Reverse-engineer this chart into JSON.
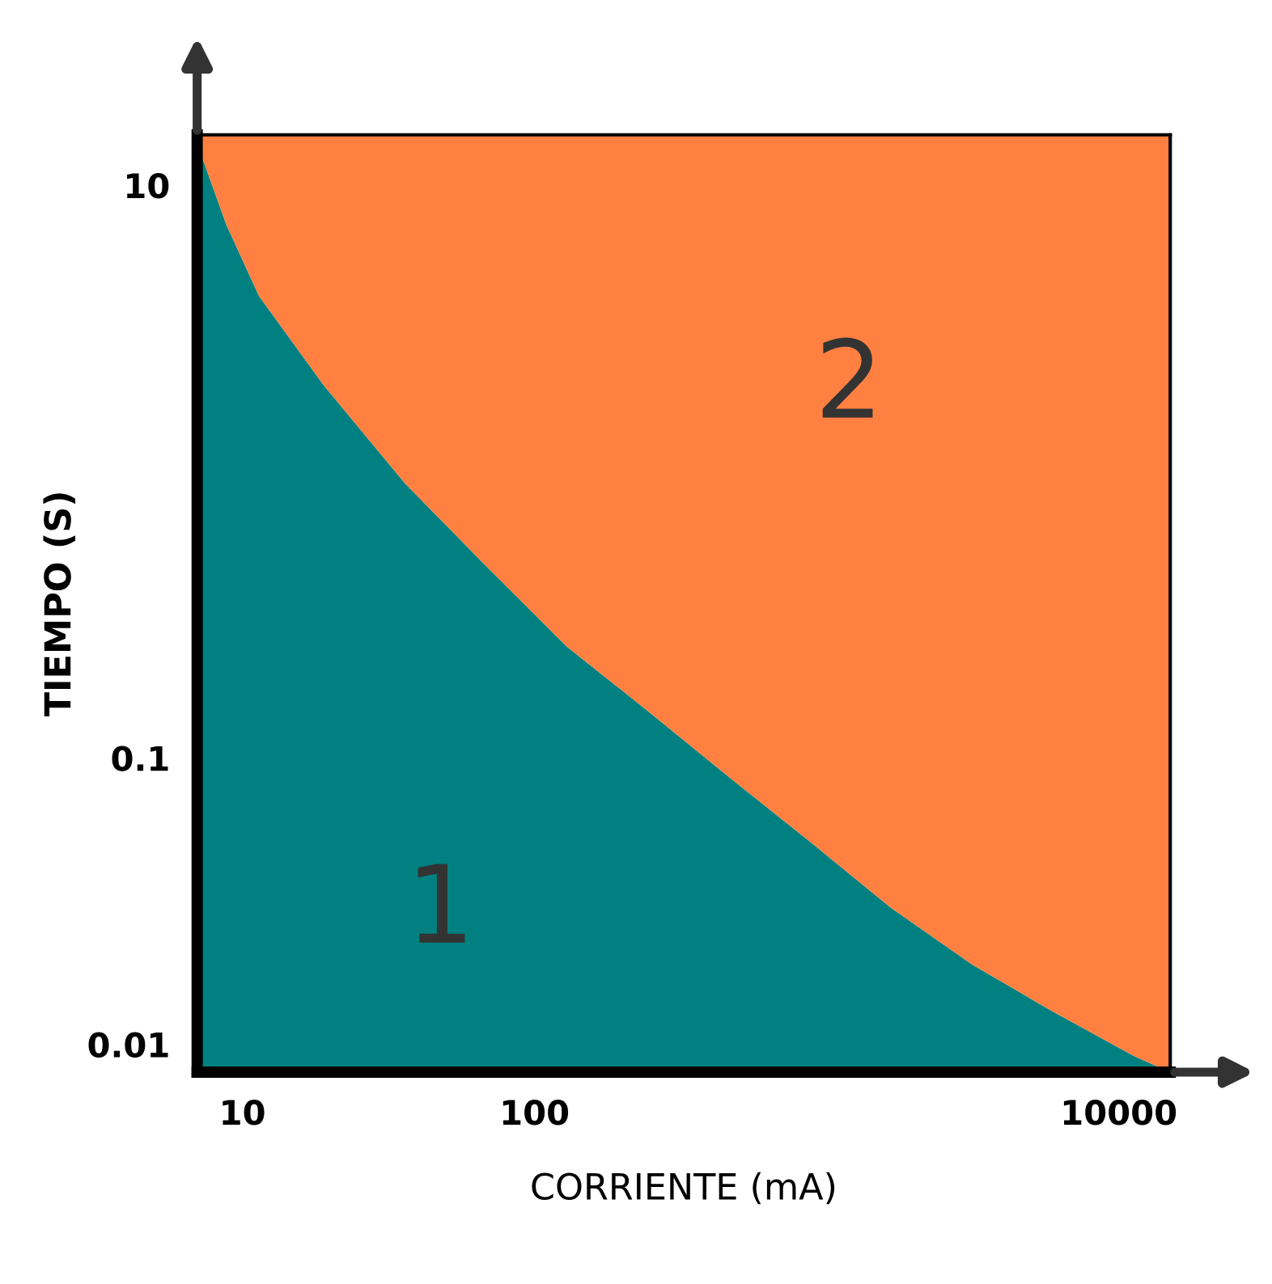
{
  "chart_data": {
    "type": "area",
    "stacked": true,
    "log": "xy",
    "xlabel": "CORRIENTE (mA)",
    "ylabel": "TIEMPO (S)",
    "x": [
      7,
      8.8,
      11.4,
      19,
      36,
      68,
      129,
      244,
      462,
      877,
      1660,
      3150,
      5960,
      11300,
      15000
    ],
    "series": [
      {
        "color": "#008080",
        "values": [
          14,
          7.3,
          4.1,
          2.0,
          0.91,
          0.47,
          0.245,
          0.146,
          0.086,
          0.051,
          0.03,
          0.019,
          0.013,
          0.0091,
          0.008
        ]
      },
      {
        "color": "#ff8040",
        "values": [
          1,
          7.7,
          10.9,
          13,
          14.09,
          14.53,
          14.755,
          14.854,
          14.914,
          14.949,
          14.97,
          14.981,
          14.987,
          14.9909,
          14.992
        ]
      }
    ],
    "xlim": [
      7,
      15000
    ],
    "ylim": [
      0.008,
      15
    ],
    "xticks": [
      10,
      100,
      10000
    ],
    "yticks": [
      0.01,
      0.1,
      10
    ],
    "grid": false,
    "annotations": [
      "1",
      "2"
    ]
  }
}
